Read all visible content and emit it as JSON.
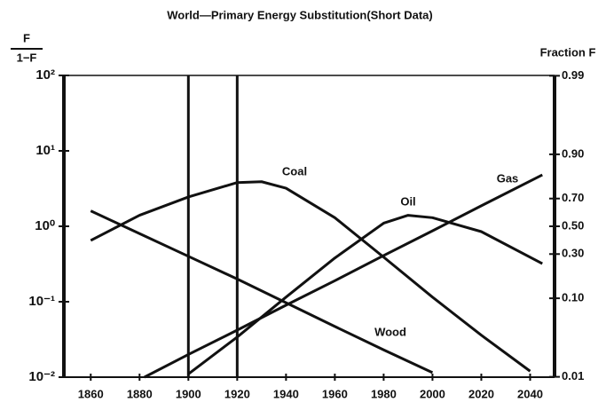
{
  "chart_data": {
    "type": "line",
    "title": "World—Primary Energy Substitution(Short Data)",
    "y_label_numerator": "F",
    "y_label_denominator": "1−F",
    "y2_label": "Fraction F",
    "xlim": [
      1849,
      2050
    ],
    "xticks": [
      1860,
      1880,
      1900,
      1920,
      1940,
      1960,
      1980,
      2000,
      2020,
      2040
    ],
    "ylim": [
      0.01,
      100
    ],
    "yscale": "log",
    "yticks": [
      {
        "value": 100,
        "label": "10²"
      },
      {
        "value": 10,
        "label": "10¹"
      },
      {
        "value": 1,
        "label": "10⁰"
      },
      {
        "value": 0.1,
        "label": "10⁻¹"
      },
      {
        "value": 0.01,
        "label": "10⁻²"
      }
    ],
    "y2lim": [
      0.0099,
      0.9901
    ],
    "y2scale": "logit",
    "y2ticks": [
      0.99,
      {
        "value": 0.9,
        "label": "0.90"
      },
      {
        "value": 0.7,
        "label": "0.70"
      },
      {
        "value": 0.5,
        "label": "0.50"
      },
      {
        "value": 0.3,
        "label": "0.30"
      },
      {
        "value": 0.1,
        "label": "0.10"
      },
      0.01
    ],
    "vlines": [
      1900,
      1920
    ],
    "series": [
      {
        "name": "Wood",
        "color": "#111111",
        "x": [
          1860,
          1880,
          1900,
          1920,
          1940,
          1960,
          1980,
          2000
        ],
        "values": [
          1.6,
          0.8,
          0.4,
          0.2,
          0.097,
          0.047,
          0.023,
          0.0115
        ]
      },
      {
        "name": "Coal",
        "color": "#111111",
        "x": [
          1860,
          1880,
          1900,
          1920,
          1930,
          1940,
          1960,
          1980,
          2000,
          2020,
          2040
        ],
        "values": [
          0.65,
          1.4,
          2.45,
          3.8,
          3.9,
          3.2,
          1.3,
          0.39,
          0.115,
          0.036,
          0.012
        ]
      },
      {
        "name": "Oil",
        "color": "#111111",
        "x": [
          1900,
          1920,
          1940,
          1960,
          1980,
          1990,
          2000,
          2020,
          2045
        ],
        "values": [
          0.011,
          0.034,
          0.115,
          0.38,
          1.1,
          1.4,
          1.3,
          0.85,
          0.32
        ]
      },
      {
        "name": "Gas",
        "color": "#111111",
        "x": [
          1882,
          1900,
          1920,
          1940,
          1960,
          1980,
          2000,
          2020,
          2045
        ],
        "values": [
          0.01,
          0.02,
          0.042,
          0.09,
          0.19,
          0.41,
          0.87,
          1.87,
          4.8
        ]
      }
    ]
  }
}
